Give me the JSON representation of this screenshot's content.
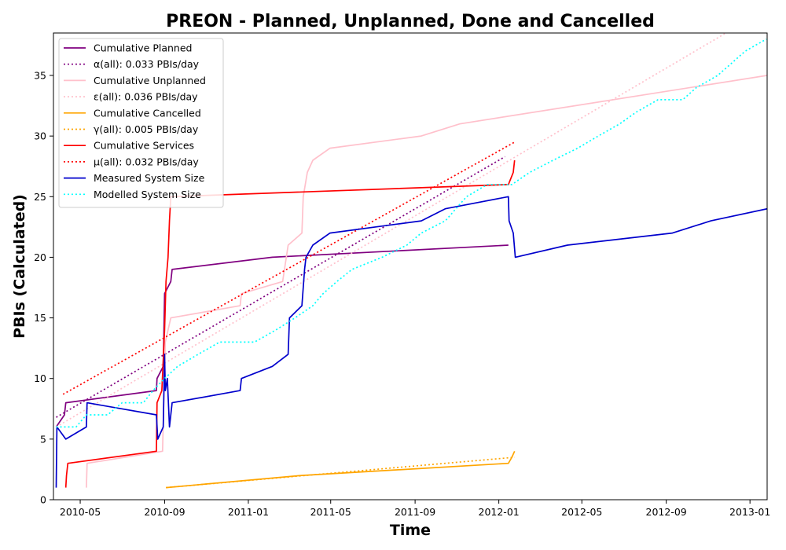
{
  "chart_data": {
    "type": "line",
    "title": "PREON - Planned, Unplanned, Done  and Cancelled",
    "xlabel": "Time",
    "ylabel": "PBIs (Calculated)",
    "x_range": [
      "2010-03-23",
      "2013-01-26"
    ],
    "ylim": [
      0,
      38.5
    ],
    "x_ticks": [
      {
        "date": "2010-05-01",
        "label": "2010-05"
      },
      {
        "date": "2010-09-01",
        "label": "2010-09"
      },
      {
        "date": "2011-01-01",
        "label": "2011-01"
      },
      {
        "date": "2011-05-01",
        "label": "2011-05"
      },
      {
        "date": "2011-09-01",
        "label": "2011-09"
      },
      {
        "date": "2012-01-01",
        "label": "2012-01"
      },
      {
        "date": "2012-05-01",
        "label": "2012-05"
      },
      {
        "date": "2012-09-01",
        "label": "2012-09"
      },
      {
        "date": "2013-01-01",
        "label": "2013-01"
      }
    ],
    "y_ticks": [
      0,
      5,
      10,
      15,
      20,
      25,
      30,
      35
    ],
    "grid": false,
    "legend_position": "top-left",
    "series": [
      {
        "name": "Cumulative Planned",
        "color": "#800080",
        "style": "solid",
        "points": [
          [
            "2010-03-27",
            6
          ],
          [
            "2010-04-08",
            7
          ],
          [
            "2010-04-10",
            8
          ],
          [
            "2010-08-20",
            9
          ],
          [
            "2010-08-21",
            10
          ],
          [
            "2010-08-30",
            11
          ],
          [
            "2010-09-01",
            17
          ],
          [
            "2010-09-10",
            18
          ],
          [
            "2010-09-12",
            19
          ],
          [
            "2011-02-05",
            20
          ],
          [
            "2012-01-15",
            21
          ]
        ]
      },
      {
        "name": "α(all): 0.033 PBIs/day",
        "color": "#800080",
        "style": "dotted",
        "points": [
          [
            "2010-03-27",
            6.8
          ],
          [
            "2012-01-10",
            28.3
          ]
        ]
      },
      {
        "name": "Cumulative Unplanned",
        "color": "#ffc0cb",
        "style": "solid",
        "points": [
          [
            "2010-05-10",
            1
          ],
          [
            "2010-05-11",
            3
          ],
          [
            "2010-08-29",
            4
          ],
          [
            "2010-09-02",
            13
          ],
          [
            "2010-09-06",
            14
          ],
          [
            "2010-09-10",
            15
          ],
          [
            "2010-12-20",
            16
          ],
          [
            "2010-12-22",
            17
          ],
          [
            "2011-02-20",
            18
          ],
          [
            "2011-02-28",
            21
          ],
          [
            "2011-03-20",
            22
          ],
          [
            "2011-03-22",
            25
          ],
          [
            "2011-03-28",
            27
          ],
          [
            "2011-04-05",
            28
          ],
          [
            "2011-04-30",
            29
          ],
          [
            "2011-09-10",
            30
          ],
          [
            "2011-11-05",
            31
          ],
          [
            "2013-01-26",
            35
          ]
        ]
      },
      {
        "name": "ε(all): 0.036 PBIs/day",
        "color": "#ffc0cb",
        "style": "dotted",
        "points": [
          [
            "2010-03-27",
            6.0
          ],
          [
            "2012-11-27",
            38.5
          ]
        ]
      },
      {
        "name": "Cumulative Cancelled",
        "color": "#ffa500",
        "style": "solid",
        "points": [
          [
            "2010-09-03",
            1
          ],
          [
            "2011-03-20",
            2
          ],
          [
            "2012-01-15",
            3
          ],
          [
            "2012-01-20",
            3.5
          ],
          [
            "2012-01-24",
            4
          ]
        ]
      },
      {
        "name": "γ(all): 0.005 PBIs/day",
        "color": "#ffa500",
        "style": "dotted",
        "points": [
          [
            "2010-09-03",
            1.0
          ],
          [
            "2012-01-24",
            3.5
          ]
        ]
      },
      {
        "name": "Cumulative Services",
        "color": "#ff0000",
        "style": "solid",
        "points": [
          [
            "2010-04-10",
            1
          ],
          [
            "2010-04-11",
            2
          ],
          [
            "2010-04-13",
            3
          ],
          [
            "2010-08-20",
            4
          ],
          [
            "2010-08-21",
            8
          ],
          [
            "2010-08-28",
            9
          ],
          [
            "2010-09-01",
            14
          ],
          [
            "2010-09-03",
            18
          ],
          [
            "2010-09-06",
            20
          ],
          [
            "2010-09-08",
            23
          ],
          [
            "2010-09-10",
            25
          ],
          [
            "2012-01-15",
            26
          ],
          [
            "2012-01-22",
            27
          ],
          [
            "2012-01-24",
            28
          ]
        ]
      },
      {
        "name": "μ(all): 0.032 PBIs/day",
        "color": "#ff0000",
        "style": "dotted",
        "points": [
          [
            "2010-04-06",
            8.7
          ],
          [
            "2012-01-24",
            29.5
          ]
        ]
      },
      {
        "name": "Measured System Size",
        "color": "#0000cc",
        "style": "solid",
        "points": [
          [
            "2010-03-27",
            1
          ],
          [
            "2010-03-28",
            6
          ],
          [
            "2010-04-10",
            5
          ],
          [
            "2010-05-10",
            6
          ],
          [
            "2010-05-11",
            8
          ],
          [
            "2010-08-20",
            7
          ],
          [
            "2010-08-22",
            5
          ],
          [
            "2010-08-30",
            6
          ],
          [
            "2010-09-01",
            12
          ],
          [
            "2010-09-02",
            9
          ],
          [
            "2010-09-05",
            10
          ],
          [
            "2010-09-08",
            6
          ],
          [
            "2010-09-12",
            8
          ],
          [
            "2010-12-20",
            9
          ],
          [
            "2010-12-22",
            10
          ],
          [
            "2011-02-05",
            11
          ],
          [
            "2011-02-28",
            12
          ],
          [
            "2011-03-02",
            15
          ],
          [
            "2011-03-20",
            16
          ],
          [
            "2011-03-24",
            19
          ],
          [
            "2011-03-26",
            20
          ],
          [
            "2011-04-05",
            21
          ],
          [
            "2011-04-30",
            22
          ],
          [
            "2011-09-10",
            23
          ],
          [
            "2011-10-15",
            24
          ],
          [
            "2012-01-15",
            25
          ],
          [
            "2012-01-16",
            23
          ],
          [
            "2012-01-22",
            22
          ],
          [
            "2012-01-25",
            20
          ],
          [
            "2012-04-10",
            21
          ],
          [
            "2012-09-10",
            22
          ],
          [
            "2012-11-05",
            23
          ],
          [
            "2013-01-26",
            24
          ]
        ]
      },
      {
        "name": "Modelled System Size",
        "color": "#00ffff",
        "style": "dotted",
        "points": [
          [
            "2010-03-27",
            6
          ],
          [
            "2010-04-25",
            6
          ],
          [
            "2010-05-10",
            7
          ],
          [
            "2010-06-10",
            7
          ],
          [
            "2010-07-01",
            8
          ],
          [
            "2010-08-01",
            8
          ],
          [
            "2010-08-15",
            9
          ],
          [
            "2010-09-01",
            10
          ],
          [
            "2010-09-20",
            11
          ],
          [
            "2010-10-20",
            12
          ],
          [
            "2010-11-20",
            13
          ],
          [
            "2011-01-10",
            13
          ],
          [
            "2011-02-10",
            14
          ],
          [
            "2011-03-10",
            15
          ],
          [
            "2011-04-05",
            16
          ],
          [
            "2011-04-20",
            17
          ],
          [
            "2011-05-10",
            18
          ],
          [
            "2011-06-01",
            19
          ],
          [
            "2011-07-15",
            20
          ],
          [
            "2011-08-20",
            21
          ],
          [
            "2011-09-10",
            22
          ],
          [
            "2011-10-15",
            23
          ],
          [
            "2011-11-15",
            25
          ],
          [
            "2011-12-15",
            26
          ],
          [
            "2012-01-20",
            26
          ],
          [
            "2012-02-15",
            27
          ],
          [
            "2012-03-20",
            28
          ],
          [
            "2012-04-25",
            29
          ],
          [
            "2012-05-25",
            30
          ],
          [
            "2012-06-25",
            31
          ],
          [
            "2012-07-20",
            32
          ],
          [
            "2012-08-20",
            33
          ],
          [
            "2012-09-25",
            33
          ],
          [
            "2012-10-15",
            34
          ],
          [
            "2012-11-15",
            35
          ],
          [
            "2012-12-05",
            36
          ],
          [
            "2012-12-25",
            37
          ],
          [
            "2013-01-25",
            38
          ]
        ]
      }
    ]
  }
}
